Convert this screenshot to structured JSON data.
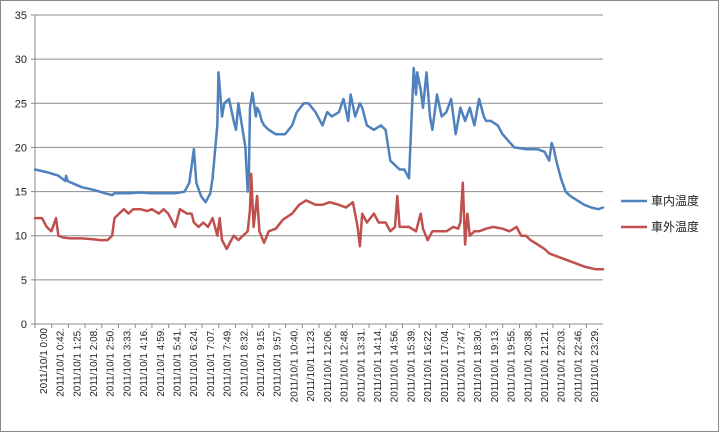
{
  "chart_data": {
    "type": "line",
    "title": "",
    "xlabel": "",
    "ylabel": "",
    "ylim": [
      0,
      35
    ],
    "yticks": [
      0,
      5,
      10,
      15,
      20,
      25,
      30,
      35
    ],
    "grid": "horizontal",
    "legend_position": "right",
    "x_tick_labels": [
      "2011/10/1 0:00",
      "2011/10/1 0:42.",
      "2011/10/1 1:25.",
      "2011/10/1 2:08.",
      "2011/10/1 2:50.",
      "2011/10/1 3:33.",
      "2011/10/1 4:16.",
      "2011/10/1 4:59.",
      "2011/10/1 5:41.",
      "2011/10/1 6:24.",
      "2011/10/1 7:07.",
      "2011/10/1 7:49.",
      "2011/10/1 8:32.",
      "2011/10/1 9:15.",
      "2011/10/1 9:57.",
      "2011/10/1 10:40.",
      "2011/10/1 11:23.",
      "2011/10/1 12:06.",
      "2011/10/1 12:48.",
      "2011/10/1 13:31.",
      "2011/10/1 14:14.",
      "2011/10/1 14:56.",
      "2011/10/1 15:39.",
      "2011/10/1 16:22.",
      "2011/10/1 17:04.",
      "2011/10/1 17:47.",
      "2011/10/1 18:30.",
      "2011/10/1 19:13.",
      "2011/10/1 19:55.",
      "2011/10/1 20:38.",
      "2011/10/1 21:21.",
      "2011/10/1 22:03.",
      "2011/10/1 22:46.",
      "2011/10/1 23:29."
    ],
    "x_range_hours": [
      0,
      24.3
    ],
    "series": [
      {
        "name": "車内温度",
        "color": "#4f81bd",
        "x_hours": [
          0,
          0.5,
          1,
          1.3,
          1.33,
          1.4,
          1.55,
          2,
          2.5,
          3,
          3.3,
          3.4,
          4,
          4.5,
          5,
          5.5,
          6,
          6.4,
          6.6,
          6.8,
          6.9,
          7.1,
          7.3,
          7.5,
          7.6,
          7.8,
          7.85,
          8.0,
          8.1,
          8.3,
          8.5,
          8.6,
          8.7,
          9.0,
          9.1,
          9.15,
          9.2,
          9.3,
          9.45,
          9.5,
          9.6,
          9.7,
          9.8,
          10,
          10.3,
          10.7,
          11,
          11.2,
          11.5,
          11.7,
          12,
          12.3,
          12.5,
          12.7,
          13,
          13.2,
          13.4,
          13.5,
          13.7,
          13.9,
          14.0,
          14.2,
          14.5,
          14.8,
          15.0,
          15.2,
          15.4,
          15.6,
          15.8,
          16.0,
          16.2,
          16.3,
          16.35,
          16.5,
          16.6,
          16.75,
          16.9,
          17.0,
          17.2,
          17.4,
          17.6,
          17.8,
          18.0,
          18.2,
          18.4,
          18.6,
          18.8,
          19.0,
          19.2,
          19.3,
          19.5,
          19.8,
          20.0,
          20.5,
          21.0,
          21.5,
          21.8,
          22.0,
          22.1,
          22.2,
          22.3,
          22.5,
          22.7,
          22.9,
          23.2,
          23.5,
          23.8,
          24.1,
          24.3
        ],
        "values": [
          17.5,
          17.2,
          16.8,
          16.2,
          16.8,
          16.2,
          16.0,
          15.5,
          15.2,
          14.8,
          14.6,
          14.8,
          14.8,
          14.9,
          14.8,
          14.8,
          14.8,
          15.0,
          16.0,
          19.8,
          16.0,
          14.5,
          13.8,
          14.8,
          16.5,
          22.5,
          28.5,
          23.5,
          25.0,
          25.5,
          23.0,
          22.0,
          25.0,
          20.0,
          15.0,
          17.0,
          24.5,
          26.2,
          23.5,
          24.5,
          24.0,
          23.0,
          22.5,
          22.0,
          21.5,
          21.5,
          22.5,
          24.0,
          25.0,
          25.0,
          24.0,
          22.5,
          24.0,
          23.5,
          24.0,
          25.5,
          23.0,
          26.0,
          23.5,
          25.0,
          24.5,
          22.5,
          22.0,
          22.5,
          22.0,
          18.5,
          18.0,
          17.5,
          17.5,
          16.5,
          29.0,
          26.0,
          28.5,
          26.5,
          24.5,
          28.5,
          23.5,
          22.0,
          26.0,
          23.5,
          24.0,
          25.5,
          21.5,
          24.5,
          23.0,
          24.5,
          22.5,
          25.5,
          23.5,
          23.0,
          23.0,
          22.5,
          21.5,
          20.0,
          19.8,
          19.8,
          19.5,
          18.5,
          20.5,
          19.8,
          18.5,
          16.5,
          15.0,
          14.5,
          14.0,
          13.5,
          13.2,
          13.0,
          13.2
        ]
      },
      {
        "name": "車外温度",
        "color": "#c0504d",
        "x_hours": [
          0,
          0.3,
          0.5,
          0.7,
          0.9,
          1.0,
          1.2,
          1.5,
          2,
          2.5,
          2.8,
          2.9,
          3.1,
          3.3,
          3.4,
          3.6,
          3.8,
          4.0,
          4.2,
          4.5,
          4.8,
          5.0,
          5.3,
          5.5,
          5.7,
          6.0,
          6.2,
          6.5,
          6.7,
          6.8,
          7.0,
          7.2,
          7.4,
          7.6,
          7.8,
          7.9,
          8.0,
          8.2,
          8.4,
          8.5,
          8.7,
          8.9,
          9.1,
          9.2,
          9.25,
          9.35,
          9.5,
          9.6,
          9.8,
          10.0,
          10.3,
          10.6,
          11.0,
          11.3,
          11.6,
          12.0,
          12.3,
          12.6,
          13.0,
          13.3,
          13.6,
          13.8,
          13.9,
          14.0,
          14.2,
          14.5,
          14.7,
          15.0,
          15.2,
          15.4,
          15.5,
          15.6,
          15.8,
          16.0,
          16.3,
          16.5,
          16.6,
          16.8,
          17.0,
          17.3,
          17.6,
          17.9,
          18.1,
          18.2,
          18.3,
          18.4,
          18.5,
          18.6,
          18.8,
          19.0,
          19.3,
          19.6,
          20.0,
          20.3,
          20.6,
          20.8,
          21.0,
          21.2,
          21.5,
          21.8,
          22.0,
          22.5,
          23.0,
          23.5,
          24.0,
          24.3
        ],
        "values": [
          12.0,
          12.0,
          11.0,
          10.5,
          12.0,
          10.0,
          9.8,
          9.7,
          9.7,
          9.6,
          9.5,
          9.5,
          9.5,
          10.0,
          12.0,
          12.5,
          13.0,
          12.5,
          13.0,
          13.0,
          12.8,
          13.0,
          12.5,
          13.0,
          12.5,
          11.0,
          13.0,
          12.5,
          12.5,
          11.5,
          11.0,
          11.5,
          11.0,
          12.0,
          10.0,
          12.0,
          9.5,
          8.5,
          9.5,
          10.0,
          9.5,
          10.0,
          10.5,
          13.0,
          17.0,
          11.0,
          14.5,
          10.5,
          9.2,
          10.5,
          10.8,
          11.8,
          12.5,
          13.5,
          14.0,
          13.5,
          13.5,
          13.8,
          13.5,
          13.2,
          13.8,
          11.0,
          8.8,
          12.5,
          11.5,
          12.5,
          11.5,
          11.5,
          10.5,
          11.0,
          14.5,
          11.0,
          11.0,
          11.0,
          10.5,
          12.5,
          10.8,
          9.5,
          10.5,
          10.5,
          10.5,
          11.0,
          10.8,
          11.5,
          16.0,
          9.0,
          12.5,
          10.0,
          10.5,
          10.5,
          10.8,
          11.0,
          10.8,
          10.5,
          11.0,
          10.0,
          10.0,
          9.5,
          9.0,
          8.5,
          8.0,
          7.5,
          7.0,
          6.5,
          6.2,
          6.2
        ]
      }
    ]
  }
}
